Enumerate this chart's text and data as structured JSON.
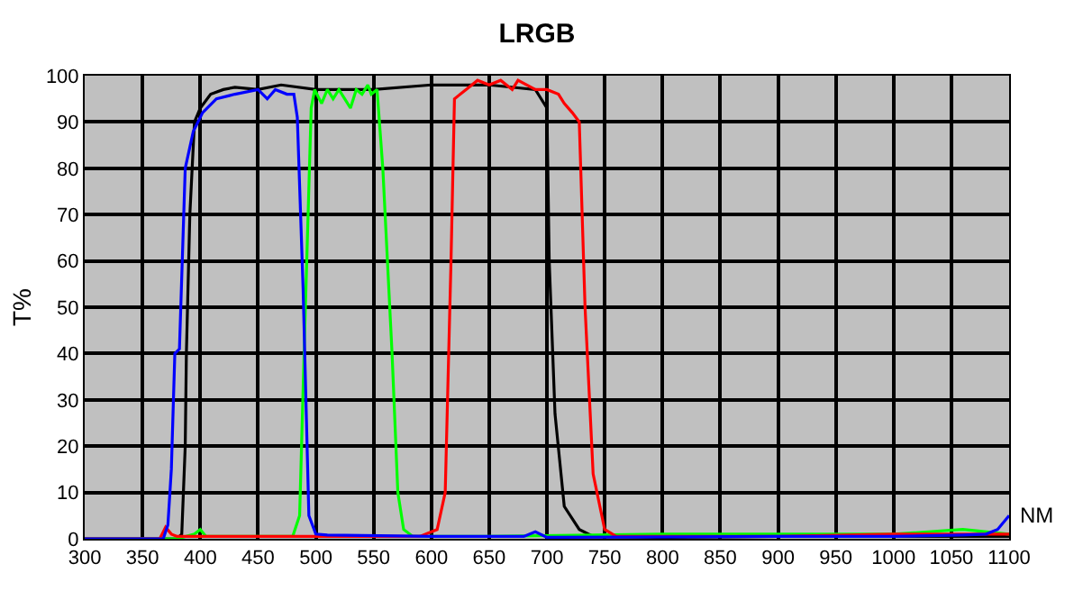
{
  "chart_data": {
    "type": "line",
    "title": "LRGB",
    "xlabel": "NM",
    "ylabel": "T%",
    "xlim": [
      300,
      1100
    ],
    "xticks": [
      300,
      350,
      400,
      450,
      500,
      550,
      600,
      650,
      700,
      750,
      800,
      850,
      900,
      950,
      1000,
      1050,
      1100
    ],
    "ylim": [
      0,
      100
    ],
    "yticks": [
      0,
      10,
      20,
      30,
      40,
      50,
      60,
      70,
      80,
      90,
      100
    ],
    "grid": true,
    "marker": "none",
    "line_style": "solid",
    "series": [
      {
        "color": "#000000",
        "x": [
          300,
          380,
          384,
          387,
          388,
          391,
          395,
          400,
          409,
          420,
          430,
          450,
          470,
          500,
          550,
          600,
          650,
          690,
          700,
          702,
          707,
          715,
          728,
          740,
          800,
          900,
          1000,
          1100
        ],
        "values": [
          0,
          0,
          1,
          20,
          40,
          70,
          90,
          93,
          96,
          97,
          97.5,
          97,
          98,
          97,
          97,
          98,
          98,
          97,
          93,
          60,
          27,
          7,
          2,
          0.5,
          0.3,
          0.5,
          0.5,
          0.5
        ]
      },
      {
        "color": "#00ff00",
        "x": [
          300,
          380,
          395,
          400,
          405,
          480,
          486,
          491,
          496,
          499,
          505,
          510,
          515,
          520,
          525,
          530,
          535,
          540,
          545,
          548,
          553,
          558,
          566,
          571,
          576,
          584,
          650,
          800,
          870,
          1000,
          1060,
          1100
        ],
        "values": [
          0,
          0,
          1,
          2,
          0.5,
          0.5,
          5,
          50,
          93,
          97,
          94,
          97,
          95,
          97,
          95,
          93,
          97,
          96,
          98,
          96,
          97,
          80,
          40,
          10,
          2,
          0.5,
          0.5,
          1,
          1,
          1,
          2,
          1
        ]
      },
      {
        "color": "#ff0000",
        "x": [
          300,
          365,
          370,
          375,
          380,
          590,
          605,
          612,
          617,
          620,
          630,
          640,
          650,
          660,
          670,
          675,
          690,
          700,
          710,
          715,
          722,
          728,
          733,
          740,
          750,
          760,
          900,
          1000,
          1100
        ],
        "values": [
          0,
          0,
          2.5,
          1,
          0.5,
          0.5,
          2,
          10,
          60,
          95,
          97,
          99,
          98,
          99,
          97,
          99,
          97,
          97,
          96,
          94,
          92,
          90,
          50,
          14,
          2,
          0.5,
          0.5,
          1,
          1
        ]
      },
      {
        "color": "#0000ff",
        "x": [
          300,
          368,
          372,
          375,
          378,
          382,
          387,
          394,
          402,
          414,
          430,
          450,
          458,
          465,
          475,
          481,
          484,
          489,
          494,
          500,
          510,
          600,
          680,
          690,
          700,
          900,
          1000,
          1060,
          1080,
          1090,
          1100
        ],
        "values": [
          0,
          0,
          3,
          15,
          40,
          41,
          80,
          88,
          92,
          95,
          96,
          97,
          95,
          97,
          96,
          96,
          91,
          54,
          5,
          1,
          0.8,
          0.5,
          0.5,
          1.5,
          0.3,
          0.5,
          0.5,
          0.8,
          1,
          2,
          5
        ]
      }
    ]
  }
}
